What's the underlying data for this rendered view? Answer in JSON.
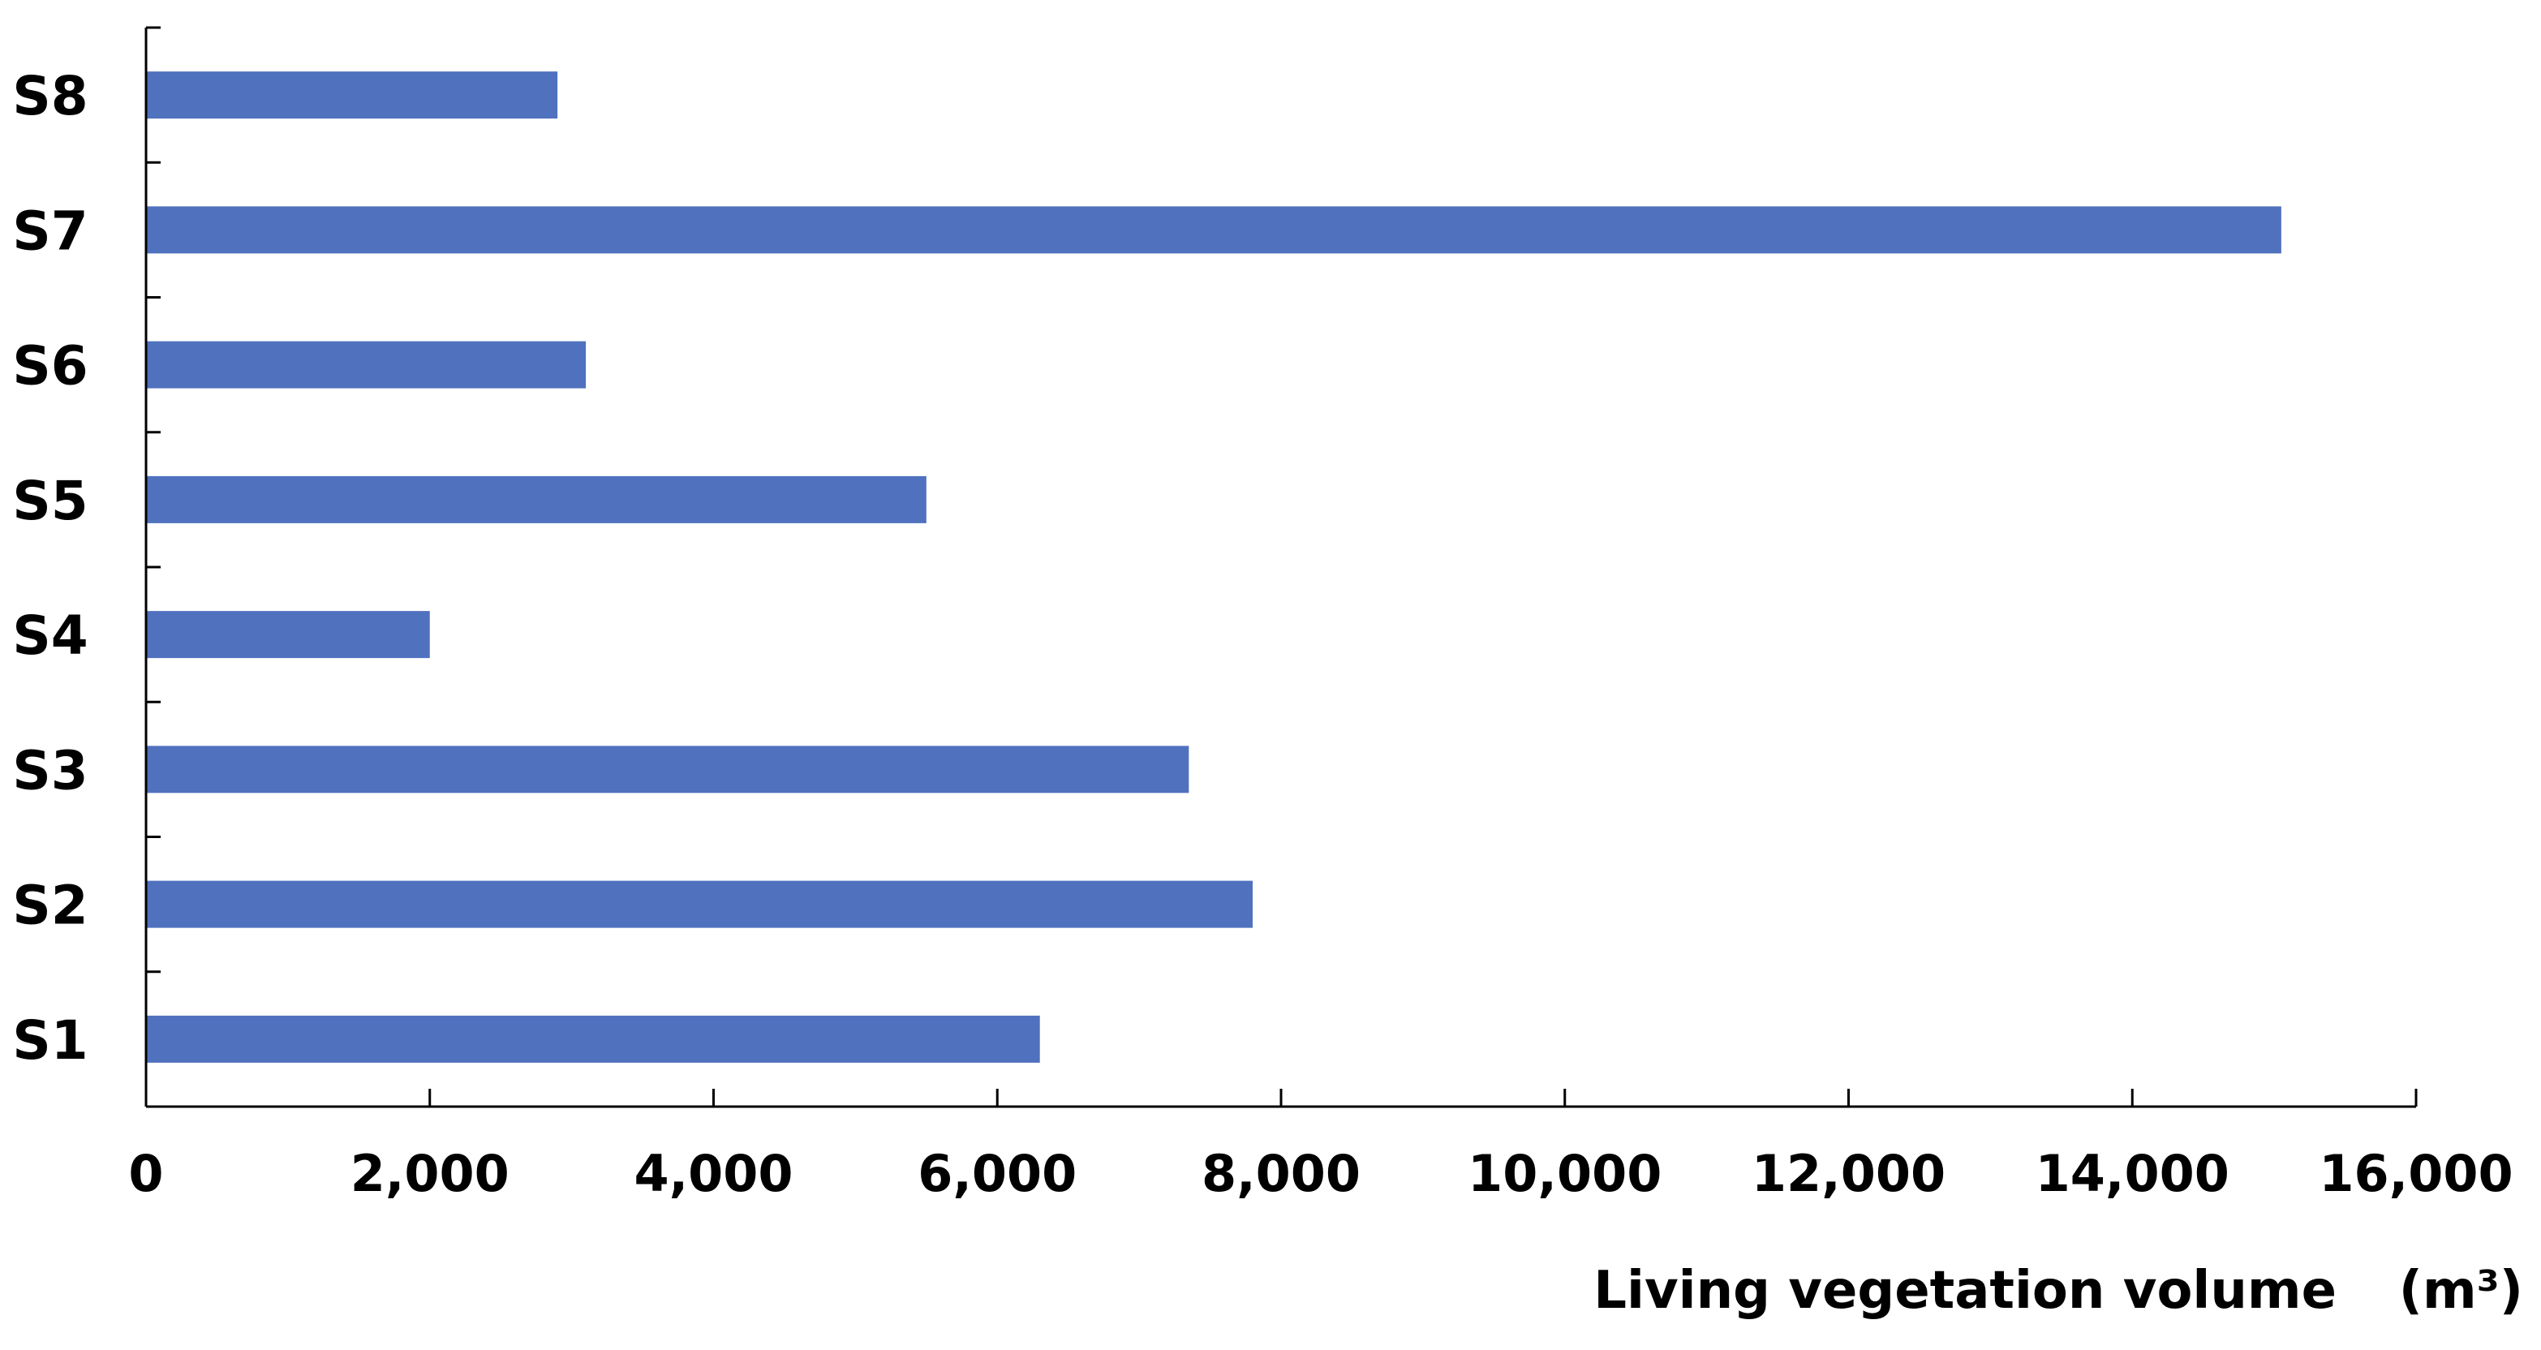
{
  "chart_data": {
    "type": "bar",
    "orientation": "horizontal",
    "title": "",
    "categories": [
      "S1",
      "S2",
      "S3",
      "S4",
      "S5",
      "S6",
      "S7",
      "S8"
    ],
    "values": [
      6300,
      7800,
      7350,
      2000,
      5500,
      3100,
      15050,
      2900
    ],
    "xlabel": "Living vegetation volume",
    "xlabel_unit": "(m³)",
    "ylabel": "",
    "xlim": [
      0,
      16000
    ],
    "xticks": [
      0,
      2000,
      4000,
      6000,
      8000,
      10000,
      12000,
      14000,
      16000
    ],
    "xtick_labels": [
      "0",
      "2,000",
      "4,000",
      "6,000",
      "8,000",
      "10,000",
      "12,000",
      "14,000",
      "16,000"
    ],
    "grid": false,
    "legend": "none",
    "bar_color": "#4f71be",
    "axis_color": "#000000"
  }
}
